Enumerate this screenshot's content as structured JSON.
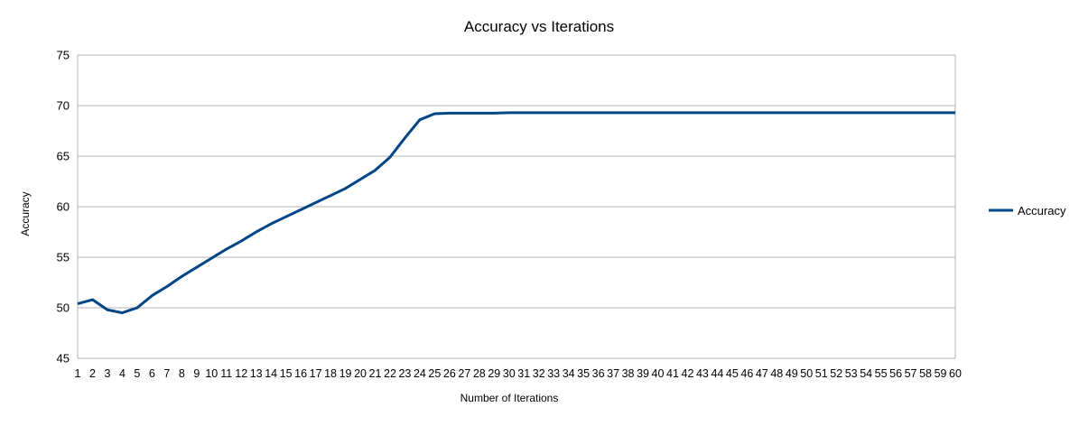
{
  "chart_data": {
    "type": "line",
    "title": "Accuracy vs Iterations",
    "xlabel": "Number of Iterations",
    "ylabel": "Accuracy",
    "ylim": [
      45,
      75
    ],
    "yticks": [
      45,
      50,
      55,
      60,
      65,
      70,
      75
    ],
    "grid": true,
    "legend_position": "right",
    "x": [
      1,
      2,
      3,
      4,
      5,
      6,
      7,
      8,
      9,
      10,
      11,
      12,
      13,
      14,
      15,
      16,
      17,
      18,
      19,
      20,
      21,
      22,
      23,
      24,
      25,
      26,
      27,
      28,
      29,
      30,
      31,
      32,
      33,
      34,
      35,
      36,
      37,
      38,
      39,
      40,
      41,
      42,
      43,
      44,
      45,
      46,
      47,
      48,
      49,
      50,
      51,
      52,
      53,
      54,
      55,
      56,
      57,
      58,
      59,
      60
    ],
    "series": [
      {
        "name": "Accuracy",
        "color": "#004586",
        "values": [
          50.4,
          50.8,
          49.8,
          49.5,
          50.0,
          51.2,
          52.1,
          53.1,
          54.0,
          54.9,
          55.8,
          56.6,
          57.5,
          58.3,
          59.0,
          59.7,
          60.4,
          61.1,
          61.8,
          62.7,
          63.6,
          64.9,
          66.8,
          68.6,
          69.2,
          69.25,
          69.25,
          69.25,
          69.25,
          69.3,
          69.3,
          69.3,
          69.3,
          69.3,
          69.3,
          69.3,
          69.3,
          69.3,
          69.3,
          69.3,
          69.3,
          69.3,
          69.3,
          69.3,
          69.3,
          69.3,
          69.3,
          69.3,
          69.3,
          69.3,
          69.3,
          69.3,
          69.3,
          69.3,
          69.3,
          69.3,
          69.3,
          69.3,
          69.3,
          69.3
        ]
      }
    ]
  }
}
